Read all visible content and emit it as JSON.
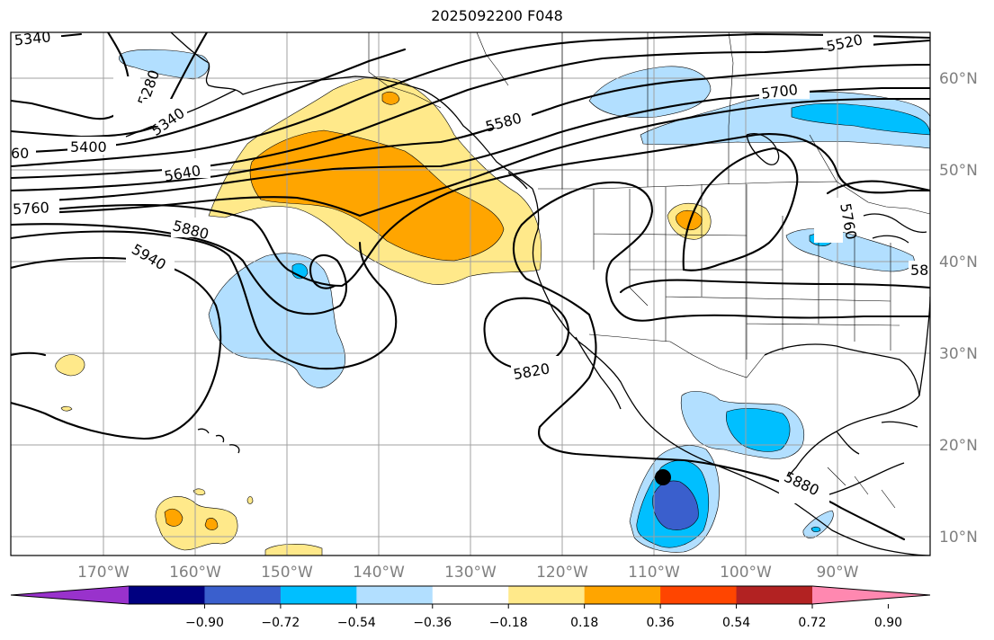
{
  "title": "2025092200 F048",
  "lat_labels": [
    "60°N",
    "50°N",
    "40°N",
    "30°N",
    "20°N",
    "10°N"
  ],
  "lon_labels": [
    "170°W",
    "160°W",
    "150°W",
    "140°W",
    "130°W",
    "120°W",
    "110°W",
    "100°W",
    "90°W"
  ],
  "contour_labels": [
    "5340",
    "5280",
    "5340",
    "5400",
    "60",
    "5640",
    "5760",
    "5880",
    "5940",
    "5580",
    "5700",
    "5520",
    "5760",
    "58",
    "5820",
    "5880"
  ],
  "colorbar": {
    "tick_labels": [
      "−0.90",
      "−0.72",
      "−0.54",
      "−0.36",
      "−0.18",
      "0.18",
      "0.36",
      "0.54",
      "0.72",
      "0.90"
    ],
    "colors": [
      "#9932cc",
      "#000080",
      "#3a5fcd",
      "#00bfff",
      "#b2dfff",
      "#ffffff",
      "#ffe98a",
      "#ffa500",
      "#ff4500",
      "#b22222",
      "#ff88b0"
    ]
  },
  "fill_colors": {
    "light_yellow": "#ffe98a",
    "orange": "#ffa500",
    "light_blue": "#b2dfff",
    "deep_sky_blue": "#00bfff",
    "royal_blue": "#3a5fcd"
  },
  "marker": "black-dot"
}
